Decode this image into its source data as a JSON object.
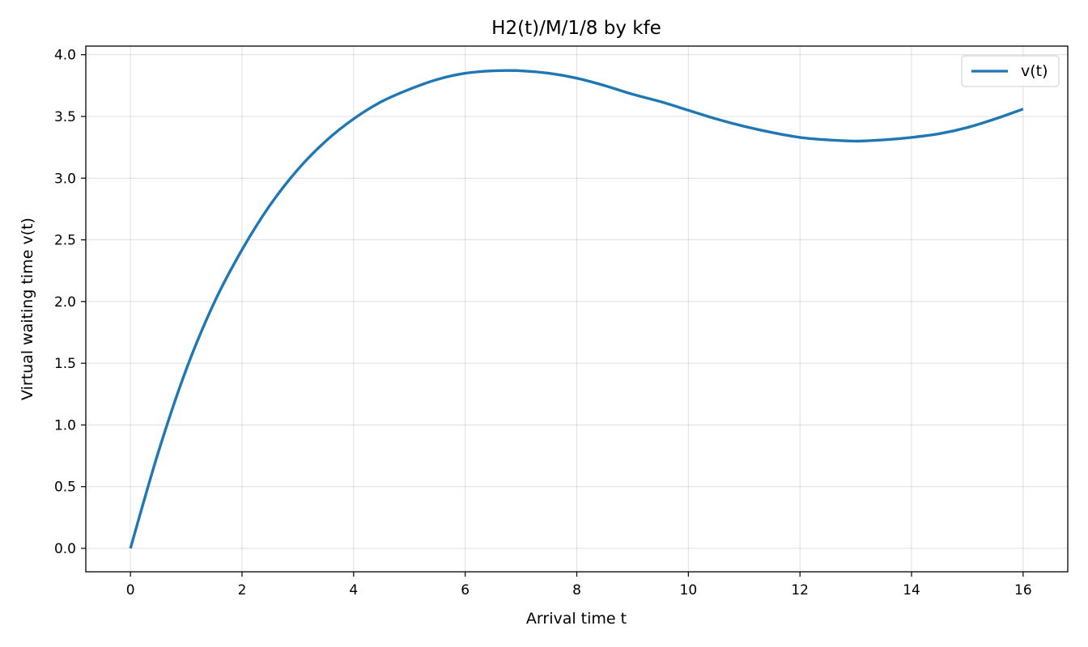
{
  "chart_data": {
    "type": "line",
    "title": "H2(t)/M/1/8 by kfe",
    "xlabel": "Arrival time t",
    "ylabel": "Virtual waiting time v(t)",
    "xlim": [
      -0.8,
      16.8
    ],
    "ylim": [
      -0.19,
      4.07
    ],
    "xticks": [
      0,
      2,
      4,
      6,
      8,
      10,
      12,
      14,
      16
    ],
    "xtick_labels": [
      "0",
      "2",
      "4",
      "6",
      "8",
      "10",
      "12",
      "14",
      "16"
    ],
    "yticks": [
      0.0,
      0.5,
      1.0,
      1.5,
      2.0,
      2.5,
      3.0,
      3.5,
      4.0
    ],
    "ytick_labels": [
      "0.0",
      "0.5",
      "1.0",
      "1.5",
      "2.0",
      "2.5",
      "3.0",
      "3.5",
      "4.0"
    ],
    "grid": true,
    "legend_position": "top-right",
    "series": [
      {
        "name": "v(t)",
        "color": "#1f77b4",
        "x": [
          0,
          0.5,
          1,
          1.5,
          2,
          2.5,
          3,
          3.5,
          4,
          4.5,
          5,
          5.5,
          6,
          6.5,
          7,
          7.5,
          8,
          8.5,
          9,
          9.5,
          10,
          10.5,
          11,
          11.5,
          12,
          12.5,
          13,
          13.5,
          14,
          14.5,
          15,
          15.5,
          16
        ],
        "y": [
          0.0,
          0.78,
          1.45,
          1.99,
          2.42,
          2.78,
          3.07,
          3.3,
          3.48,
          3.62,
          3.72,
          3.8,
          3.85,
          3.87,
          3.87,
          3.85,
          3.81,
          3.75,
          3.68,
          3.62,
          3.55,
          3.48,
          3.42,
          3.37,
          3.33,
          3.31,
          3.3,
          3.31,
          3.33,
          3.36,
          3.41,
          3.48,
          3.56
        ]
      }
    ]
  }
}
